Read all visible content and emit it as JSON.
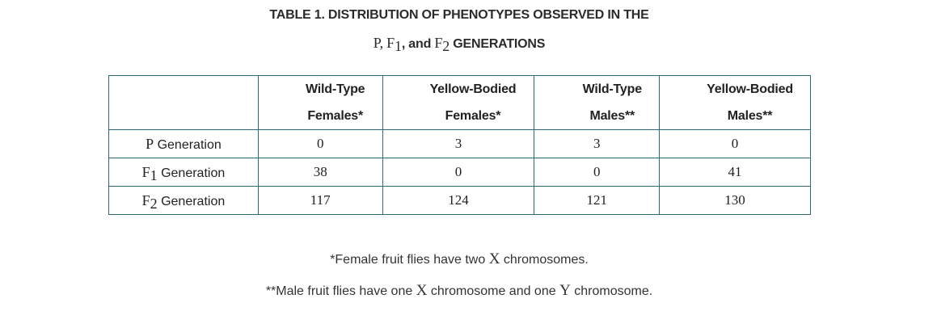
{
  "title": {
    "line1": "TABLE 1. DISTRIBUTION OF PHENOTYPES OBSERVED IN THE",
    "line2_p": "P, F",
    "line2_sub1": "1",
    "line2_and": ", and ",
    "line2_f": "F",
    "line2_sub2": "2",
    "line2_rest": " GENERATIONS"
  },
  "table": {
    "headers": [
      {
        "line1": "Wild-Type",
        "line2": "Females*"
      },
      {
        "line1": "Yellow-Bodied",
        "line2": "Females*"
      },
      {
        "line1": "Wild-Type",
        "line2": "Males**"
      },
      {
        "line1": "Yellow-Bodied",
        "line2": "Males**"
      }
    ],
    "rows": [
      {
        "label_letter": "P",
        "label_sub": "",
        "label_rest": " Generation",
        "values": [
          "0",
          "3",
          "3",
          "0"
        ]
      },
      {
        "label_letter": "F",
        "label_sub": "1",
        "label_rest": " Generation",
        "values": [
          "38",
          "0",
          "0",
          "41"
        ]
      },
      {
        "label_letter": "F",
        "label_sub": "2",
        "label_rest": " Generation",
        "values": [
          "117",
          "124",
          "121",
          "130"
        ]
      }
    ]
  },
  "notes": {
    "note1_a": "*Female fruit flies have two ",
    "note1_x": "X",
    "note1_b": " chromosomes.",
    "note2_a": "**Male fruit flies have one ",
    "note2_x": "X",
    "note2_b": " chromosome and one ",
    "note2_y": "Y",
    "note2_c": " chromosome."
  },
  "colors": {
    "table_border": "#2e6b78",
    "text": "#222222"
  }
}
